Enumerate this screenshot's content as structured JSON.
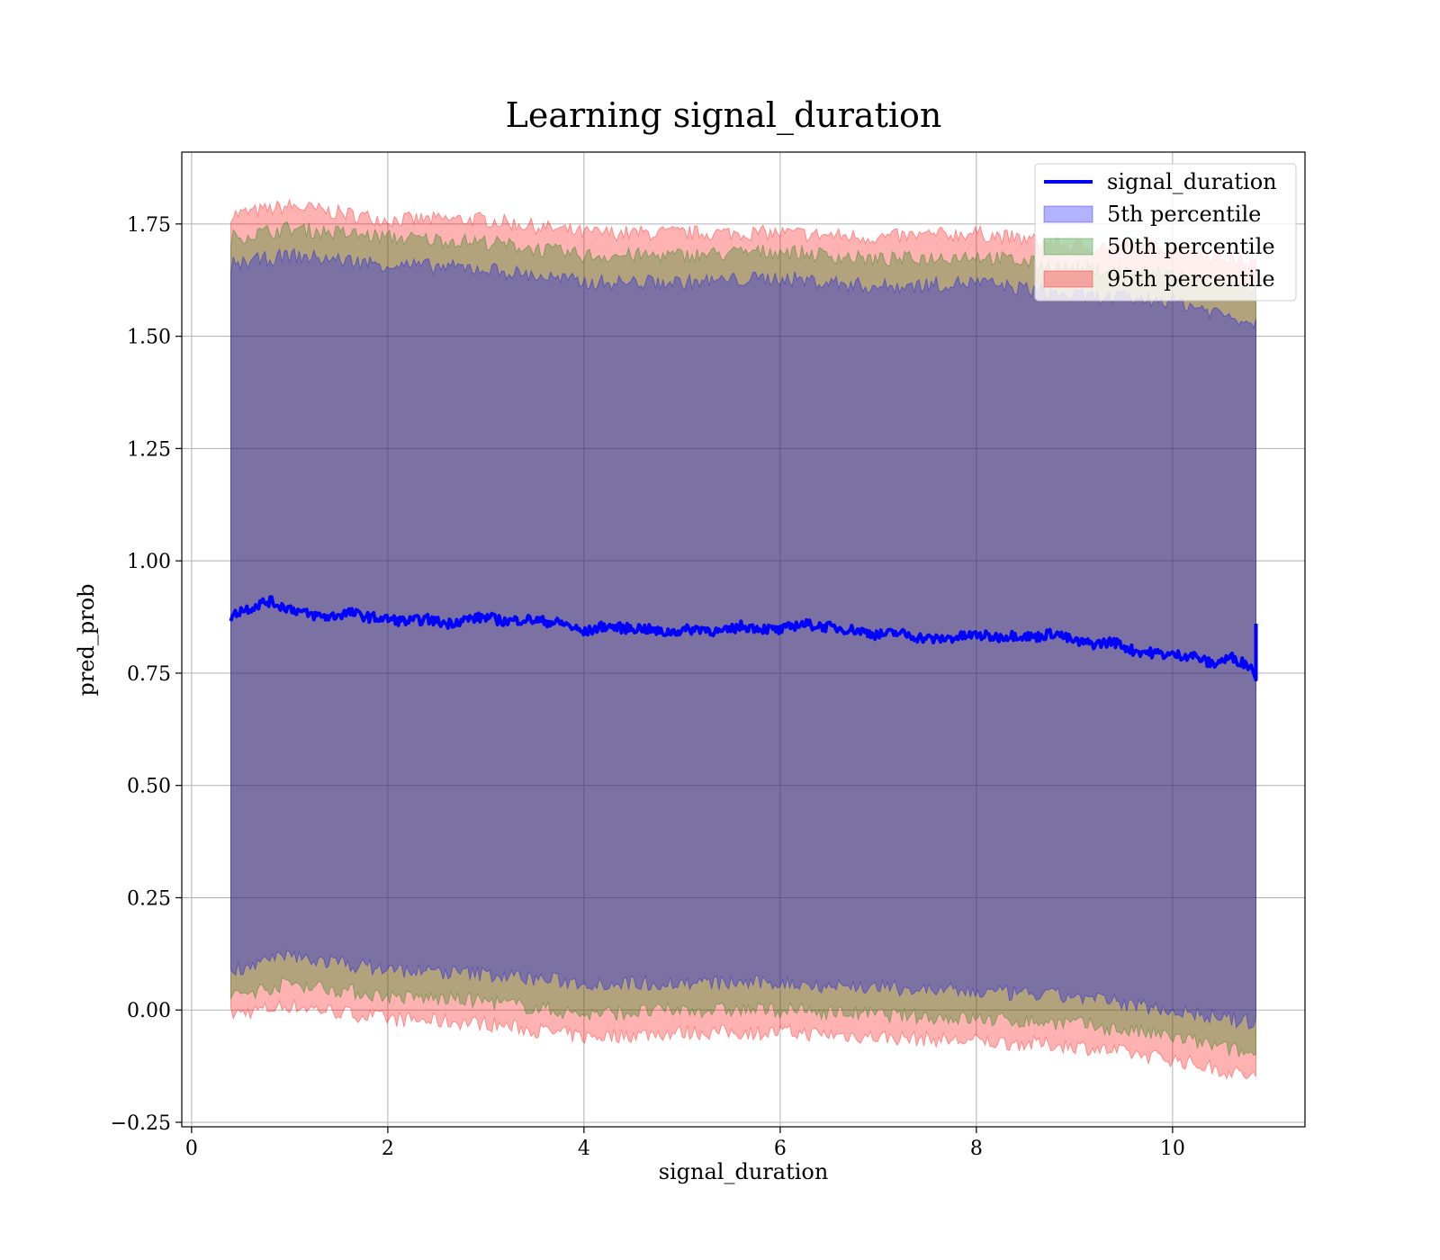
{
  "chart_data": {
    "type": "line",
    "title": "Learning signal_duration",
    "xlabel": "signal_duration",
    "ylabel": "pred_prob",
    "xlim": [
      -0.1,
      11.35
    ],
    "ylim": [
      -0.26,
      1.91
    ],
    "x_ticks": [
      0,
      2,
      4,
      6,
      8,
      10
    ],
    "x_tick_labels": [
      "0",
      "2",
      "4",
      "6",
      "8",
      "10"
    ],
    "y_ticks": [
      -0.25,
      0.0,
      0.25,
      0.5,
      0.75,
      1.0,
      1.25,
      1.5,
      1.75
    ],
    "y_tick_labels": [
      "−0.25",
      "0.00",
      "0.25",
      "0.50",
      "0.75",
      "1.00",
      "1.25",
      "1.50",
      "1.75"
    ],
    "grid": true,
    "legend_position": "top-right",
    "x_range": [
      0.4,
      10.85
    ],
    "series": [
      {
        "name": "signal_duration",
        "kind": "line",
        "color": "#0000ff",
        "x": [
          0.4,
          0.5,
          0.6,
          0.7,
          0.8,
          0.9,
          1.0,
          1.2,
          1.4,
          1.6,
          1.8,
          2.0,
          2.2,
          2.4,
          2.6,
          2.8,
          3.0,
          3.2,
          3.4,
          3.6,
          3.8,
          4.0,
          4.2,
          4.4,
          4.6,
          4.8,
          5.0,
          5.2,
          5.4,
          5.6,
          5.8,
          6.0,
          6.2,
          6.4,
          6.6,
          6.8,
          7.0,
          7.2,
          7.4,
          7.6,
          7.8,
          8.0,
          8.2,
          8.4,
          8.6,
          8.8,
          9.0,
          9.2,
          9.4,
          9.6,
          9.8,
          10.0,
          10.2,
          10.4,
          10.6,
          10.8,
          10.85
        ],
        "y": [
          0.875,
          0.89,
          0.895,
          0.905,
          0.91,
          0.9,
          0.895,
          0.88,
          0.875,
          0.885,
          0.875,
          0.87,
          0.865,
          0.87,
          0.86,
          0.87,
          0.875,
          0.865,
          0.87,
          0.865,
          0.86,
          0.84,
          0.855,
          0.85,
          0.85,
          0.84,
          0.845,
          0.85,
          0.84,
          0.855,
          0.85,
          0.845,
          0.86,
          0.855,
          0.85,
          0.845,
          0.835,
          0.84,
          0.83,
          0.825,
          0.83,
          0.835,
          0.83,
          0.835,
          0.83,
          0.84,
          0.82,
          0.815,
          0.82,
          0.8,
          0.795,
          0.79,
          0.79,
          0.77,
          0.785,
          0.765,
          0.86
        ]
      },
      {
        "name": "5th percentile",
        "kind": "band",
        "color": "#0000ff",
        "x": [
          0.4,
          1.0,
          2.0,
          3.0,
          4.0,
          5.0,
          6.0,
          7.0,
          8.0,
          9.0,
          10.0,
          10.85
        ],
        "upper": [
          1.66,
          1.68,
          1.66,
          1.65,
          1.62,
          1.62,
          1.63,
          1.61,
          1.62,
          1.59,
          1.58,
          1.53
        ],
        "lower": [
          0.09,
          0.12,
          0.09,
          0.08,
          0.06,
          0.06,
          0.06,
          0.05,
          0.04,
          0.03,
          0.0,
          -0.03
        ]
      },
      {
        "name": "50th percentile",
        "kind": "band",
        "color": "#008000",
        "x": [
          0.4,
          1.0,
          2.0,
          3.0,
          4.0,
          5.0,
          6.0,
          7.0,
          8.0,
          9.0,
          10.0,
          10.85
        ],
        "upper": [
          1.72,
          1.74,
          1.72,
          1.71,
          1.68,
          1.68,
          1.69,
          1.67,
          1.68,
          1.65,
          1.64,
          1.6
        ],
        "lower": [
          0.03,
          0.06,
          0.03,
          0.02,
          -0.01,
          0.0,
          0.0,
          -0.01,
          -0.02,
          -0.03,
          -0.06,
          -0.1
        ]
      },
      {
        "name": "95th percentile",
        "kind": "band",
        "color": "#ff0000",
        "x": [
          0.4,
          1.0,
          2.0,
          3.0,
          4.0,
          5.0,
          6.0,
          7.0,
          8.0,
          9.0,
          10.0,
          10.85
        ],
        "upper": [
          1.77,
          1.79,
          1.76,
          1.76,
          1.73,
          1.73,
          1.73,
          1.72,
          1.73,
          1.7,
          1.7,
          1.66
        ],
        "lower": [
          -0.01,
          0.01,
          -0.02,
          -0.03,
          -0.06,
          -0.05,
          -0.05,
          -0.06,
          -0.07,
          -0.08,
          -0.11,
          -0.15
        ]
      }
    ],
    "legend": [
      {
        "label": "signal_duration",
        "kind": "line",
        "color": "#0000ff"
      },
      {
        "label": "5th percentile",
        "kind": "patch",
        "color": "#0000ff"
      },
      {
        "label": "50th percentile",
        "kind": "patch",
        "color": "#008000"
      },
      {
        "label": "95th percentile",
        "kind": "patch",
        "color": "#ff0000"
      }
    ]
  }
}
